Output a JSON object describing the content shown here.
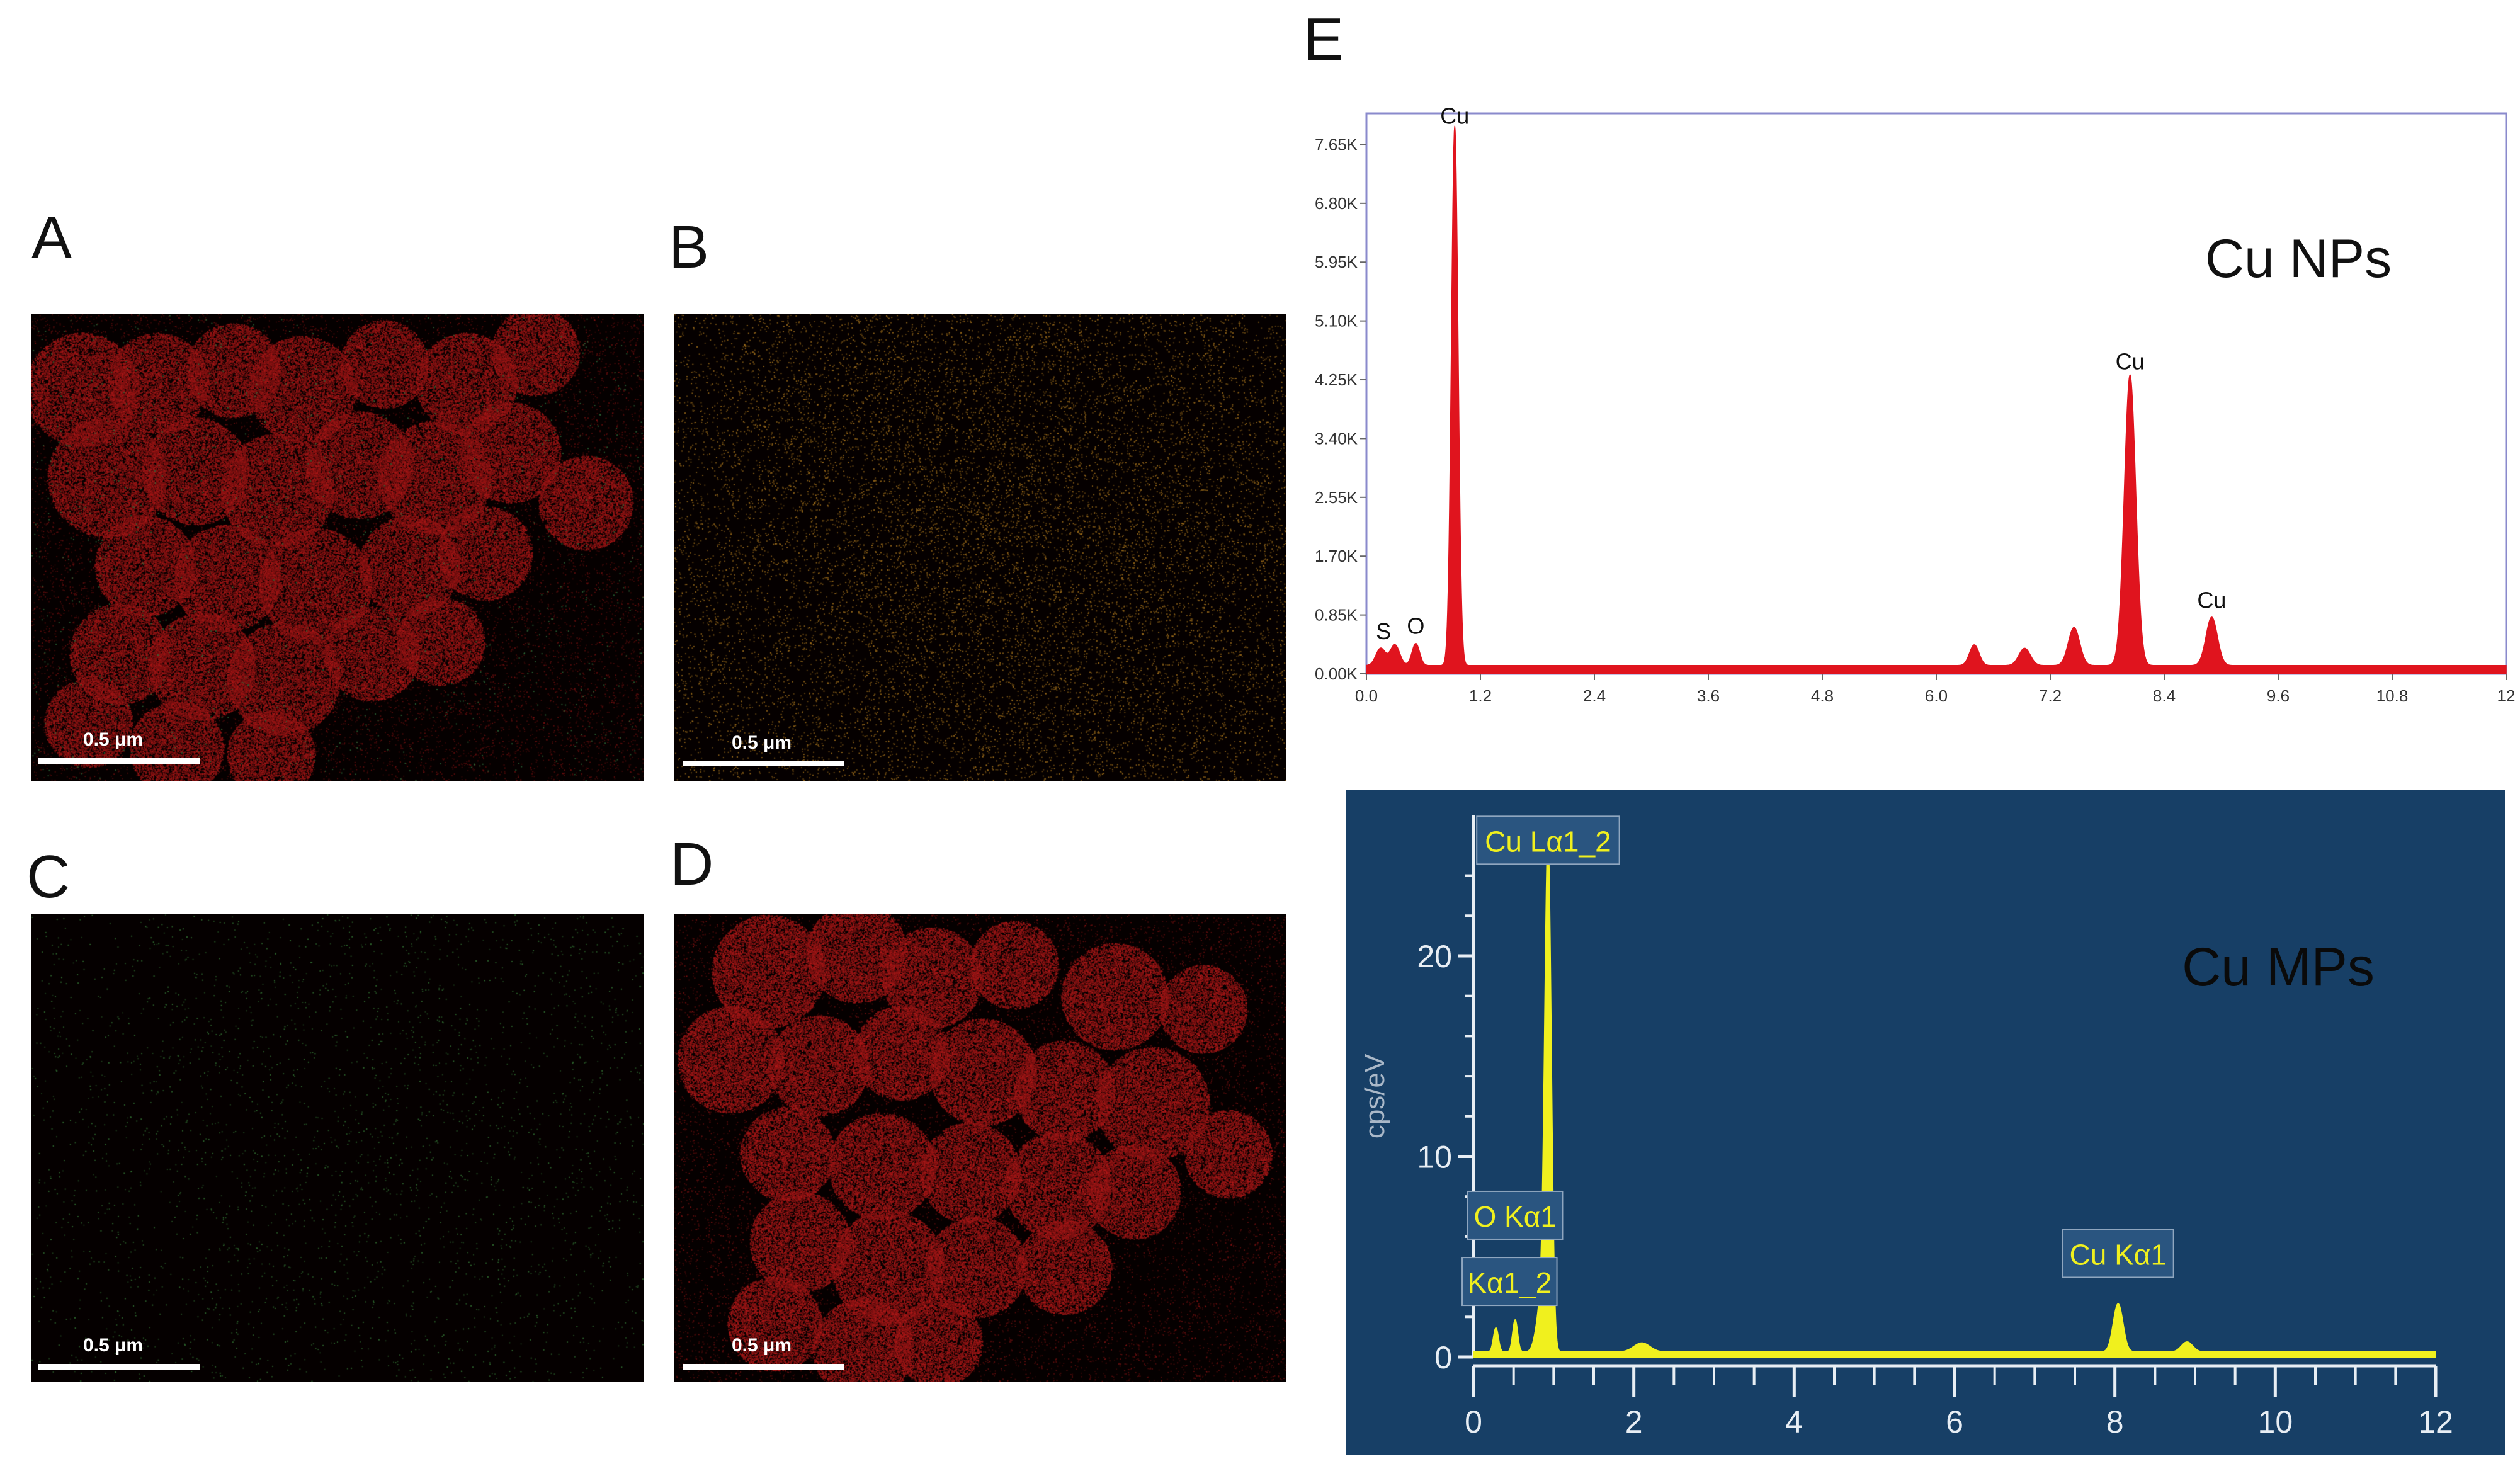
{
  "panels": {
    "A": {
      "letter": "A",
      "scale_label": "0.5 μm",
      "colors": {
        "main": "#b01818",
        "speck": "#2e6b3a"
      }
    },
    "B": {
      "letter": "B",
      "scale_label": "0.5 μm",
      "colors": {
        "main": "#9a6a1a"
      }
    },
    "C": {
      "letter": "C",
      "scale_label": "0.5 μm",
      "colors": {
        "main": "#2f6a2f"
      }
    },
    "D": {
      "letter": "D",
      "scale_label": "0.5 μm",
      "colors": {
        "main": "#b81a1a"
      }
    },
    "E": {
      "letter": "E"
    }
  },
  "chart_data": [
    {
      "type": "line",
      "title": "Cu NPs",
      "xlim": [
        0,
        12
      ],
      "ylim": [
        0,
        8.1
      ],
      "x_ticks": [
        "0.0",
        "1.2",
        "2.4",
        "3.6",
        "4.8",
        "6.0",
        "7.2",
        "8.4",
        "9.6",
        "10.8",
        "12"
      ],
      "x_tick_values": [
        0,
        1.2,
        2.4,
        3.6,
        4.8,
        6.0,
        7.2,
        8.4,
        9.6,
        10.8,
        12
      ],
      "y_ticks": [
        "0.00K",
        "0.85K",
        "1.70K",
        "2.55K",
        "3.40K",
        "4.25K",
        "5.10K",
        "5.95K",
        "6.80K",
        "7.65K"
      ],
      "y_tick_values": [
        0,
        0.85,
        1.7,
        2.55,
        3.4,
        4.25,
        5.1,
        5.95,
        6.8,
        7.65
      ],
      "baseline": 0.12,
      "peaks": [
        {
          "x": 0.15,
          "y": 0.25,
          "w": 0.05
        },
        {
          "x": 0.3,
          "y": 0.3,
          "w": 0.05
        },
        {
          "x": 0.52,
          "y": 0.32,
          "w": 0.04
        },
        {
          "x": 0.93,
          "y": 7.8,
          "w": 0.035
        },
        {
          "x": 6.4,
          "y": 0.3,
          "w": 0.05
        },
        {
          "x": 6.93,
          "y": 0.25,
          "w": 0.06
        },
        {
          "x": 7.45,
          "y": 0.55,
          "w": 0.06
        },
        {
          "x": 8.04,
          "y": 4.2,
          "w": 0.06
        },
        {
          "x": 8.9,
          "y": 0.7,
          "w": 0.06
        }
      ],
      "annotations": [
        {
          "label": "Cu",
          "x": 0.93,
          "y": 7.95
        },
        {
          "label": "Cu",
          "x": 8.04,
          "y": 4.4
        },
        {
          "label": "Cu",
          "x": 8.9,
          "y": 0.95
        },
        {
          "label": "S",
          "x": 0.18,
          "y": 0.5
        },
        {
          "label": "O",
          "x": 0.52,
          "y": 0.58
        }
      ],
      "colors": {
        "fill": "#e0141e",
        "frame": "#8a8acc",
        "background": "#ffffff"
      }
    },
    {
      "type": "line",
      "title": "Cu MPs",
      "ylabel": "cps/eV",
      "xlim": [
        0,
        12
      ],
      "ylim": [
        0,
        27
      ],
      "x_ticks": [
        "0",
        "2",
        "4",
        "6",
        "8",
        "10",
        "12"
      ],
      "x_tick_values": [
        0,
        2,
        4,
        6,
        8,
        10,
        12
      ],
      "y_ticks": [
        "0",
        "10",
        "20"
      ],
      "y_tick_values": [
        0,
        10,
        20
      ],
      "baseline": 0.25,
      "peaks": [
        {
          "x": 0.28,
          "y": 1.2,
          "w": 0.03
        },
        {
          "x": 0.52,
          "y": 1.6,
          "w": 0.03
        },
        {
          "x": 0.93,
          "y": 24.5,
          "w": 0.04
        },
        {
          "x": 0.85,
          "y": 2.5,
          "w": 0.06
        },
        {
          "x": 2.1,
          "y": 0.45,
          "w": 0.1
        },
        {
          "x": 8.04,
          "y": 2.4,
          "w": 0.06
        },
        {
          "x": 8.9,
          "y": 0.5,
          "w": 0.07
        }
      ],
      "annotations": [
        {
          "label": "Cu Lα1_2",
          "x": 0.93,
          "y": 25.2
        },
        {
          "label": "O Kα1",
          "x": 0.52,
          "y": 6.5
        },
        {
          "label": "Kα1_2",
          "x": 0.45,
          "y": 3.2
        },
        {
          "label": "Cu Kα1",
          "x": 8.04,
          "y": 4.6
        }
      ],
      "colors": {
        "fill": "#f0f01e",
        "background": "#173f66",
        "axis": "#e8eef4",
        "label_box": "#2a5580"
      }
    }
  ]
}
